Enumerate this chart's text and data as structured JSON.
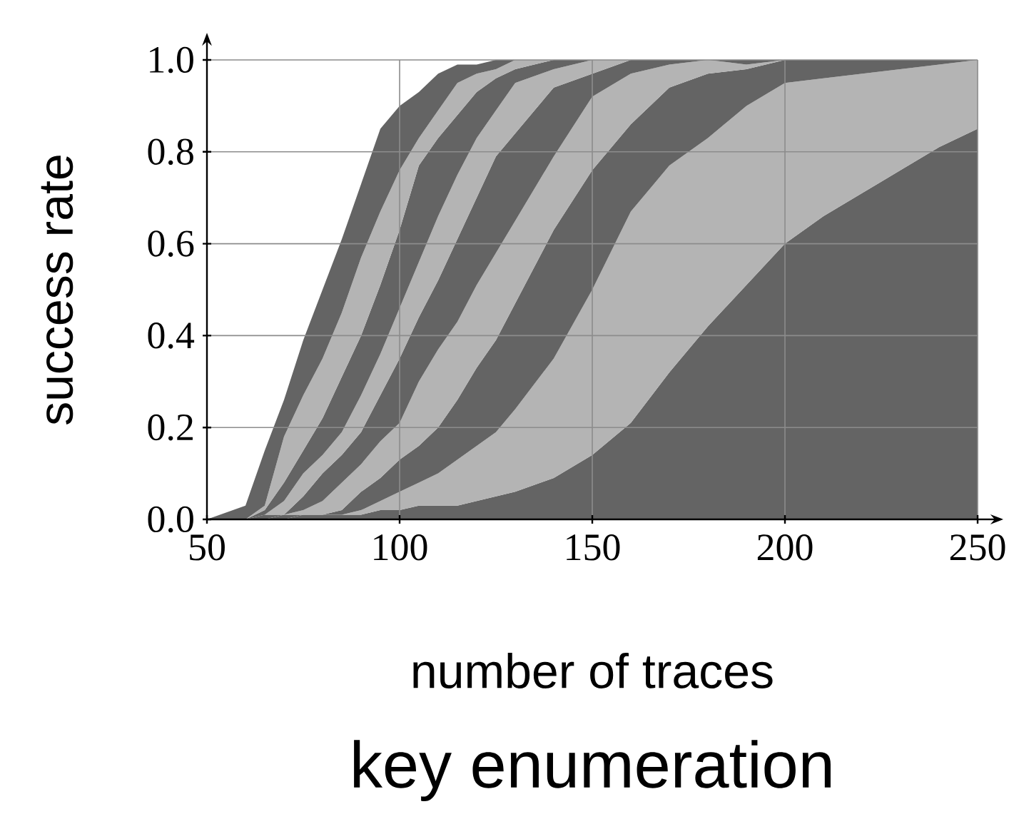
{
  "chart_data": {
    "type": "area",
    "title": "key enumeration",
    "xlabel": "number of traces",
    "ylabel": "success rate",
    "xlim": [
      50,
      250
    ],
    "ylim": [
      0,
      1.0
    ],
    "xticks": [
      50,
      100,
      150,
      200,
      250
    ],
    "yticks": [
      {
        "value": 0,
        "label": "0.0"
      },
      {
        "value": 0.2,
        "label": "0.2"
      },
      {
        "value": 0.4,
        "label": "0.4"
      },
      {
        "value": 0.6,
        "label": "0.6"
      },
      {
        "value": 0.8,
        "label": "0.8"
      },
      {
        "value": 1.0,
        "label": "1.0"
      }
    ],
    "grid": true,
    "stacked": true,
    "x": [
      50,
      60,
      65,
      70,
      75,
      80,
      85,
      90,
      95,
      100,
      105,
      110,
      115,
      120,
      125,
      130,
      140,
      150,
      160,
      170,
      180,
      190,
      200,
      210,
      220,
      230,
      240,
      250
    ],
    "series": [
      {
        "color": "#646464",
        "values": [
          null,
          null,
          null,
          0,
          0.01,
          0.01,
          0.01,
          0.01,
          0.02,
          0.02,
          0.03,
          0.03,
          0.03,
          0.04,
          0.05,
          0.06,
          0.09,
          0.14,
          0.21,
          0.32,
          0.42,
          0.51,
          0.6,
          0.66,
          0.71,
          0.76,
          0.81,
          0.85
        ]
      },
      {
        "color": "#b4b4b4",
        "values": [
          null,
          null,
          null,
          null,
          null,
          null,
          0,
          0.01,
          0.02,
          0.04,
          0.05,
          0.07,
          0.1,
          0.12,
          0.14,
          0.18,
          0.26,
          0.36,
          0.46,
          0.45,
          0.41,
          0.39,
          0.35,
          0.3,
          0.26,
          0.22,
          0.18,
          0.15
        ]
      },
      {
        "color": "#646464",
        "values": [
          null,
          null,
          0,
          0.01,
          0,
          0,
          0.01,
          0.04,
          0.05,
          0.07,
          0.08,
          0.1,
          0.13,
          0.17,
          0.2,
          0.23,
          0.28,
          0.26,
          0.19,
          0.17,
          0.14,
          0.08,
          0.05,
          0.04,
          0.03,
          0.02,
          0.01,
          0
        ]
      },
      {
        "color": "#b4b4b4",
        "values": [
          null,
          null,
          null,
          0,
          0.01,
          0.03,
          0.06,
          0.06,
          0.08,
          0.08,
          0.14,
          0.17,
          0.17,
          0.18,
          0.19,
          0.18,
          0.16,
          0.16,
          0.11,
          0.05,
          0.03,
          0.01,
          0,
          null,
          null,
          null,
          null,
          null
        ]
      },
      {
        "color": "#646464",
        "values": [
          null,
          0,
          0.01,
          0,
          0.03,
          0.06,
          0.06,
          0.07,
          0.1,
          0.14,
          0.14,
          0.15,
          0.18,
          0.19,
          0.21,
          0.19,
          0.15,
          0.05,
          0.03,
          0.01,
          0,
          0.01,
          0,
          null,
          null,
          null,
          null,
          null
        ]
      },
      {
        "color": "#b4b4b4",
        "values": [
          null,
          null,
          0,
          0.03,
          0.05,
          0.04,
          0.05,
          0.08,
          0.09,
          0.11,
          0.12,
          0.14,
          0.14,
          0.13,
          0.1,
          0.11,
          0.04,
          0.03,
          0,
          null,
          null,
          null,
          null,
          null,
          null,
          null,
          null,
          null
        ]
      },
      {
        "color": "#646464",
        "values": [
          null,
          0,
          0.01,
          0.04,
          0.05,
          0.08,
          0.12,
          0.13,
          0.15,
          0.17,
          0.21,
          0.17,
          0.13,
          0.1,
          0.07,
          0.03,
          0.02,
          0,
          null,
          null,
          null,
          null,
          null,
          null,
          null,
          null,
          null,
          null
        ]
      },
      {
        "color": "#b4b4b4",
        "values": [
          null,
          0,
          0.01,
          0.1,
          0.12,
          0.13,
          0.14,
          0.17,
          0.16,
          0.13,
          0.06,
          0.06,
          0.07,
          0.04,
          0.02,
          0.02,
          0,
          null,
          null,
          null,
          null,
          null,
          null,
          null,
          null,
          null,
          null,
          null
        ]
      },
      {
        "color": "#646464",
        "values": [
          0,
          0.03,
          0.12,
          0.08,
          0.12,
          0.15,
          0.16,
          0.16,
          0.18,
          0.14,
          0.1,
          0.08,
          0.04,
          0.02,
          0.02,
          0,
          null,
          null,
          null,
          null,
          null,
          null,
          null,
          null,
          null,
          null,
          null,
          null
        ]
      }
    ]
  }
}
